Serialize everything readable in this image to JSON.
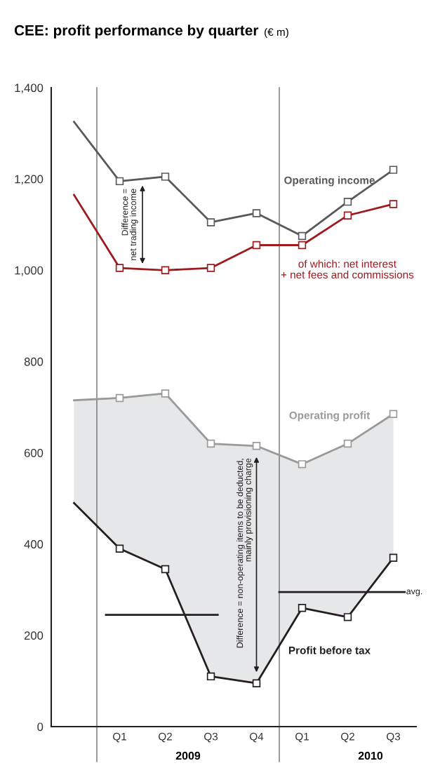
{
  "chart_data": {
    "type": "line",
    "title": "CEE: profit performance by quarter",
    "subtitle": "(€ m)",
    "categories": [
      null,
      "Q1",
      "Q2",
      "Q3",
      "Q4",
      "Q1",
      "Q2",
      "Q3"
    ],
    "series": [
      {
        "name": "Operating income",
        "color": "#58595b",
        "values": [
          1325,
          1195,
          1205,
          1105,
          1125,
          1075,
          1150,
          1220
        ]
      },
      {
        "name": "of which: net interest\n+ net fees and commissions",
        "color": "#9b1b1f",
        "values": [
          1165,
          1005,
          1000,
          1005,
          1055,
          1055,
          1120,
          1145
        ]
      },
      {
        "name": "Operating profit",
        "color": "#9a9a9a",
        "values": [
          715,
          720,
          730,
          620,
          615,
          575,
          620,
          685
        ],
        "upper": [
          715,
          720,
          730,
          620,
          615,
          575,
          620,
          685
        ],
        "lower": [
          490,
          390,
          345,
          110,
          95,
          260,
          240,
          370
        ]
      },
      {
        "name": "Profit before tax",
        "color": "#231f20",
        "values": [
          490,
          390,
          345,
          110,
          95,
          260,
          240,
          370
        ]
      }
    ],
    "annotations": [
      "2009",
      "2010",
      "Difference =\nnet trading income",
      "Difference = non-operating items to be deducted,\nmainly provisioning charge"
    ],
    "ref_lines": [
      {
        "axis": "y",
        "value": 245,
        "color": "#231f20"
      },
      {
        "axis": "y",
        "value": 295,
        "label": "avg.",
        "color": "#231f20"
      }
    ],
    "ylim": [
      0,
      1400
    ],
    "yticks": [
      0,
      200,
      400,
      600,
      800,
      {
        "value": 1000,
        "label": "1,000"
      },
      {
        "value": 1200,
        "label": "1,200"
      },
      {
        "value": 1400,
        "label": "1,400"
      }
    ],
    "marker": "square",
    "line_style": "solid",
    "legend": false,
    "grid": false
  }
}
